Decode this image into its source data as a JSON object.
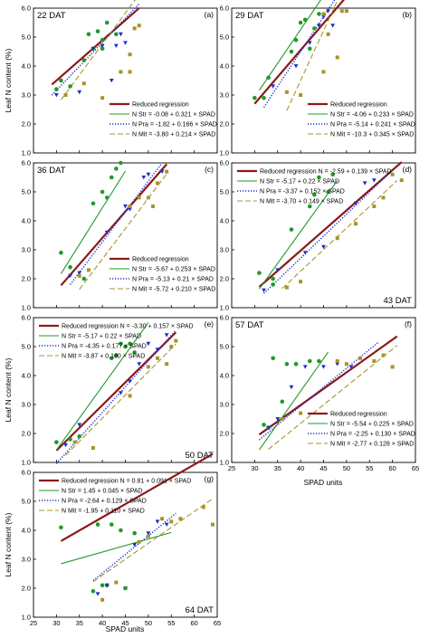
{
  "colors": {
    "reduced": "#8b1a1a",
    "str": "#1f9a2a",
    "pra": "#1e2fcf",
    "mit": "#a89428"
  },
  "labels": {
    "ylabel": "Leaf N content (%)",
    "xlabel": "SPAD units"
  },
  "chart_data": [
    {
      "type": "scatter",
      "panel": "(a)",
      "dat": "22 DAT",
      "xlim": [
        25,
        65
      ],
      "ylim": [
        1.0,
        6.0
      ],
      "legend_pos": "lower-right",
      "lines": [
        {
          "key": "reduced",
          "label": "Reduced regression",
          "x": [
            29,
            48
          ]
        },
        {
          "key": "str",
          "label": "N Str = -0.08 + 0.321 × SPAD",
          "x": [
            29,
            44
          ]
        },
        {
          "key": "pra",
          "label": "N Pra = -1.82 + 0.166 × SPAD",
          "x": [
            29,
            48
          ]
        },
        {
          "key": "mit",
          "label": "N Mit = -3.80 + 0.214 × SPAD",
          "x": [
            31,
            48
          ]
        }
      ],
      "line_eqs": {
        "reduced": [
          -0.67,
          0.139
        ],
        "str": [
          -0.08,
          0.321
        ],
        "pra": [
          -1.82,
          0.166
        ],
        "mit": [
          -3.8,
          0.214
        ]
      },
      "points": {
        "str": [
          [
            37,
            5.1
          ],
          [
            39,
            5.2
          ],
          [
            40,
            4.6
          ],
          [
            41,
            5.5
          ],
          [
            36,
            4.2
          ],
          [
            43,
            5.1
          ],
          [
            38,
            4.6
          ],
          [
            40,
            4.9
          ]
        ],
        "pra": [
          [
            30,
            3.0
          ],
          [
            35,
            3.1
          ],
          [
            38,
            4.6
          ],
          [
            40,
            4.7
          ],
          [
            43,
            4.7
          ],
          [
            42,
            3.5
          ],
          [
            45,
            4.8
          ],
          [
            44,
            5.1
          ]
        ],
        "mit": [
          [
            32,
            3.0
          ],
          [
            36,
            3.4
          ],
          [
            44,
            3.8
          ],
          [
            46,
            3.8
          ],
          [
            47,
            5.3
          ],
          [
            48,
            5.4
          ],
          [
            40,
            2.9
          ],
          [
            46,
            4.4
          ]
        ],
        "reduced": [
          [
            30,
            3.2
          ],
          [
            31,
            3.5
          ],
          [
            33,
            3.3
          ]
        ]
      }
    },
    {
      "type": "scatter",
      "panel": "(b)",
      "dat": "29 DAT",
      "xlim": [
        25,
        65
      ],
      "ylim": [
        1.0,
        6.0
      ],
      "legend_pos": "lower-right",
      "lines": [
        {
          "key": "reduced",
          "label": "Reduced regression",
          "x": [
            30,
            50
          ]
        },
        {
          "key": "str",
          "label": "N Str = -4.06 + 0.233 × SPAD",
          "x": [
            31,
            45
          ]
        },
        {
          "key": "pra",
          "label": "N Pra = -5.14 + 0.241 × SPAD",
          "x": [
            32,
            50
          ]
        },
        {
          "key": "mit",
          "label": "N Mit = -10.3 + 0.345 × SPAD",
          "x": [
            37,
            50
          ]
        }
      ],
      "line_eqs": {
        "reduced": [
          -2.85,
          0.185
        ],
        "str": [
          -4.06,
          0.233
        ],
        "pra": [
          -5.14,
          0.241
        ],
        "mit": [
          -10.3,
          0.345
        ]
      },
      "points": {
        "str": [
          [
            30,
            2.9
          ],
          [
            33,
            3.6
          ],
          [
            38,
            4.5
          ],
          [
            39,
            4.9
          ],
          [
            40,
            5.5
          ],
          [
            41,
            5.6
          ],
          [
            43,
            5.3
          ],
          [
            44,
            5.8
          ],
          [
            42,
            4.6
          ]
        ],
        "pra": [
          [
            34,
            3.3
          ],
          [
            39,
            4.0
          ],
          [
            42,
            4.8
          ],
          [
            44,
            5.4
          ],
          [
            45,
            5.7
          ],
          [
            46,
            5.9
          ],
          [
            47,
            5.4
          ]
        ],
        "mit": [
          [
            37,
            3.1
          ],
          [
            40,
            3.0
          ],
          [
            45,
            5.8
          ],
          [
            46,
            5.1
          ],
          [
            48,
            4.3
          ],
          [
            49,
            5.9
          ],
          [
            50,
            5.9
          ],
          [
            45,
            3.8
          ]
        ],
        "reduced": [
          [
            32,
            2.9
          ]
        ]
      }
    },
    {
      "type": "scatter",
      "panel": "(c)",
      "dat": "36 DAT",
      "xlim": [
        25,
        65
      ],
      "ylim": [
        1.0,
        6.0
      ],
      "legend_pos": "lower-right",
      "lines": [
        {
          "key": "reduced",
          "label": "Reduced regression",
          "x": [
            31,
            54
          ]
        },
        {
          "key": "str",
          "label": "N Str = -5.67 + 0.253 × SPAD",
          "x": [
            31,
            45
          ]
        },
        {
          "key": "pra",
          "label": "N Pra = -5.13 + 0.21 × SPAD",
          "x": [
            33,
            53
          ]
        },
        {
          "key": "mit",
          "label": "N Mit = -5.72 + 0.210 × SPAD",
          "x": [
            35,
            54
          ]
        }
      ],
      "line_eqs": {
        "reduced": [
          -3.87,
          0.182
        ],
        "str": [
          -5.67,
          0.253
        ],
        "pra": [
          -5.13,
          0.21
        ],
        "mit": [
          -5.72,
          0.21
        ]
      },
      "points": {
        "str": [
          [
            31,
            2.9
          ],
          [
            38,
            4.6
          ],
          [
            41,
            4.8
          ],
          [
            42,
            5.5
          ],
          [
            43,
            5.8
          ],
          [
            44,
            6.0
          ],
          [
            40,
            5.0
          ]
        ],
        "pra": [
          [
            33,
            2.1
          ],
          [
            35,
            2.2
          ],
          [
            41,
            3.6
          ],
          [
            45,
            4.5
          ],
          [
            46,
            4.4
          ],
          [
            49,
            5.5
          ],
          [
            50,
            5.6
          ],
          [
            53,
            5.7
          ]
        ],
        "mit": [
          [
            35,
            2.1
          ],
          [
            37,
            2.3
          ],
          [
            46,
            4.5
          ],
          [
            48,
            4.8
          ],
          [
            50,
            4.8
          ],
          [
            52,
            5.3
          ],
          [
            54,
            5.7
          ],
          [
            51,
            4.5
          ]
        ],
        "reduced": [
          [
            33,
            2.4
          ],
          [
            36,
            2.0
          ]
        ]
      }
    },
    {
      "type": "scatter",
      "panel": "(d)",
      "dat": "43 DAT",
      "xlim": [
        25,
        65
      ],
      "ylim": [
        1.0,
        6.0
      ],
      "legend_pos": "top-left",
      "lines": [
        {
          "key": "reduced",
          "label": "Reduced regression N = -2.59 + 0.139 × SPAD",
          "x": [
            31,
            62
          ]
        },
        {
          "key": "str",
          "label": "N Str = -5.17 + 0.22 × SPAD",
          "x": [
            31,
            48
          ]
        },
        {
          "key": "pra",
          "label": "N Pra = -3.37 + 0.152 × SPAD",
          "x": [
            32,
            60
          ]
        },
        {
          "key": "mit",
          "label": "N Mit = -3.70 + 0.149 × SPAD",
          "x": [
            36,
            61
          ]
        }
      ],
      "line_eqs": {
        "reduced": [
          -2.59,
          0.139
        ],
        "str": [
          -5.17,
          0.22
        ],
        "pra": [
          -3.37,
          0.152
        ],
        "mit": [
          -3.7,
          0.149
        ]
      },
      "points": {
        "str": [
          [
            31,
            2.2
          ],
          [
            34,
            1.8
          ],
          [
            38,
            3.7
          ],
          [
            42,
            4.5
          ],
          [
            43,
            4.9
          ],
          [
            44,
            5.5
          ],
          [
            46,
            5.0
          ],
          [
            47,
            5.6
          ]
        ],
        "pra": [
          [
            32,
            1.6
          ],
          [
            35,
            2.3
          ],
          [
            41,
            2.9
          ],
          [
            45,
            3.1
          ],
          [
            52,
            4.6
          ],
          [
            54,
            5.3
          ],
          [
            56,
            5.4
          ]
        ],
        "mit": [
          [
            37,
            1.7
          ],
          [
            40,
            1.9
          ],
          [
            48,
            3.4
          ],
          [
            52,
            3.9
          ],
          [
            56,
            4.5
          ],
          [
            58,
            4.8
          ],
          [
            60,
            5.6
          ],
          [
            62,
            5.4
          ]
        ],
        "reduced": [
          [
            34,
            2.0
          ]
        ]
      }
    },
    {
      "type": "scatter",
      "panel": "(e)",
      "dat": "50 DAT",
      "xlim": [
        25,
        65
      ],
      "ylim": [
        1.0,
        6.0
      ],
      "legend_pos": "top-left",
      "lines": [
        {
          "key": "reduced",
          "label": "Reduced regression N = -3.30 + 0.157 × SPAD",
          "x": [
            30,
            56
          ]
        },
        {
          "key": "str",
          "label": "N Str = -5.17 + 0.22 × SPAD",
          "x": [
            30,
            50
          ]
        },
        {
          "key": "pra",
          "label": "N Pra = -4.35 + 0.177 × SPAD",
          "x": [
            30,
            56
          ]
        },
        {
          "key": "mit",
          "label": "N Mit = -3.87 + 0.160 × SPAD",
          "x": [
            32,
            56
          ]
        }
      ],
      "line_eqs": {
        "reduced": [
          -3.3,
          0.157
        ],
        "str": [
          -5.17,
          0.22
        ],
        "pra": [
          -4.35,
          0.177
        ],
        "mit": [
          -3.87,
          0.16
        ]
      },
      "points": {
        "str": [
          [
            30,
            1.7
          ],
          [
            35,
            1.9
          ],
          [
            42,
            4.6
          ],
          [
            43,
            4.7
          ],
          [
            44,
            5.1
          ],
          [
            45,
            5.0
          ],
          [
            46,
            5.1
          ],
          [
            47,
            4.8
          ]
        ],
        "pra": [
          [
            32,
            1.6
          ],
          [
            35,
            2.3
          ],
          [
            44,
            3.4
          ],
          [
            46,
            3.8
          ],
          [
            48,
            4.4
          ],
          [
            50,
            5.1
          ],
          [
            52,
            4.9
          ],
          [
            54,
            5.4
          ]
        ],
        "mit": [
          [
            34,
            1.7
          ],
          [
            38,
            1.5
          ],
          [
            46,
            3.3
          ],
          [
            50,
            4.3
          ],
          [
            52,
            4.6
          ],
          [
            54,
            4.4
          ],
          [
            55,
            5.0
          ],
          [
            56,
            5.2
          ]
        ],
        "reduced": [
          [
            33,
            1.8
          ]
        ]
      }
    },
    {
      "type": "scatter",
      "panel": "(f)",
      "dat": "57 DAT",
      "xlim": [
        25,
        65
      ],
      "ylim": [
        1.0,
        6.0
      ],
      "legend_pos": "lower-right",
      "lines": [
        {
          "key": "reduced",
          "label": "Reduced regression",
          "x": [
            31,
            61
          ]
        },
        {
          "key": "str",
          "label": "N Str = -5.54 + 0.225 × SPAD",
          "x": [
            31,
            46
          ]
        },
        {
          "key": "pra",
          "label": "N Pra = -2.25 + 0.130 × SPAD",
          "x": [
            31,
            57
          ]
        },
        {
          "key": "mit",
          "label": "N Mit = -2.77 + 0.128 × SPAD",
          "x": [
            33,
            61
          ]
        }
      ],
      "line_eqs": {
        "reduced": [
          -1.54,
          0.113
        ],
        "str": [
          -5.54,
          0.225
        ],
        "pra": [
          -2.25,
          0.13
        ],
        "mit": [
          -2.77,
          0.128
        ]
      },
      "points": {
        "str": [
          [
            34,
            4.6
          ],
          [
            37,
            4.4
          ],
          [
            39,
            4.4
          ],
          [
            42,
            4.5
          ],
          [
            44,
            4.5
          ],
          [
            33,
            2.2
          ],
          [
            36,
            3.1
          ]
        ],
        "pra": [
          [
            33,
            2.2
          ],
          [
            35,
            2.5
          ],
          [
            38,
            3.6
          ],
          [
            41,
            4.3
          ],
          [
            45,
            4.3
          ],
          [
            48,
            4.4
          ],
          [
            51,
            4.3
          ]
        ],
        "mit": [
          [
            36,
            2.5
          ],
          [
            40,
            2.7
          ],
          [
            48,
            4.5
          ],
          [
            50,
            4.4
          ],
          [
            53,
            4.6
          ],
          [
            56,
            4.5
          ],
          [
            58,
            4.7
          ],
          [
            60,
            4.3
          ]
        ],
        "reduced": [
          [
            32,
            2.3
          ]
        ]
      }
    },
    {
      "type": "scatter",
      "panel": "(g)",
      "dat": "64 DAT",
      "xlim": [
        25,
        65
      ],
      "ylim": [
        1.0,
        6.0
      ],
      "legend_pos": "top-left",
      "lines": [
        {
          "key": "reduced",
          "label": "Reduced regression N = 0.81 + 0.091 × SPAD",
          "x": [
            31,
            64
          ]
        },
        {
          "key": "str",
          "label": "N Str = 1.45 + 0.045 × SPAD",
          "x": [
            31,
            55
          ]
        },
        {
          "key": "pra",
          "label": "N Pra = -2.64 + 0.129 × SPAD",
          "x": [
            38,
            56
          ]
        },
        {
          "key": "mit",
          "label": "N Mit = -1.95 + 0.110 × SPAD",
          "x": [
            38,
            64
          ]
        }
      ],
      "line_eqs": {
        "reduced": [
          0.81,
          0.091
        ],
        "str": [
          1.45,
          0.045
        ],
        "pra": [
          -2.64,
          0.129
        ],
        "mit": [
          -1.95,
          0.11
        ]
      },
      "points": {
        "str": [
          [
            31,
            4.1
          ],
          [
            38,
            1.9
          ],
          [
            40,
            2.1
          ],
          [
            41,
            2.1
          ],
          [
            39,
            4.2
          ],
          [
            42,
            4.2
          ],
          [
            44,
            4.0
          ],
          [
            47,
            3.9
          ]
        ],
        "pra": [
          [
            39,
            1.8
          ],
          [
            41,
            2.1
          ],
          [
            45,
            2.0
          ],
          [
            47,
            3.5
          ],
          [
            50,
            3.9
          ],
          [
            52,
            4.3
          ],
          [
            54,
            4.2
          ]
        ],
        "mit": [
          [
            40,
            1.6
          ],
          [
            43,
            2.2
          ],
          [
            48,
            3.6
          ],
          [
            50,
            3.8
          ],
          [
            53,
            4.4
          ],
          [
            55,
            4.3
          ],
          [
            57,
            4.4
          ],
          [
            62,
            4.8
          ],
          [
            64,
            4.2
          ]
        ],
        "reduced": [
          [
            45,
            2.0
          ]
        ]
      }
    }
  ]
}
